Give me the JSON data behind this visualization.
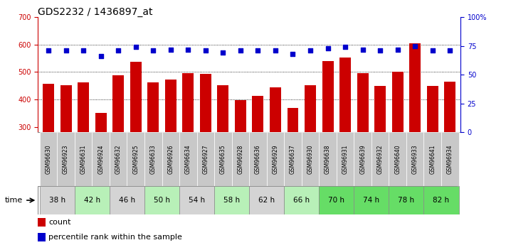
{
  "title": "GDS2232 / 1436897_at",
  "samples": [
    "GSM96630",
    "GSM96923",
    "GSM96631",
    "GSM96924",
    "GSM96632",
    "GSM96925",
    "GSM96633",
    "GSM96926",
    "GSM96634",
    "GSM96927",
    "GSM96635",
    "GSM96928",
    "GSM96636",
    "GSM96929",
    "GSM96637",
    "GSM96930",
    "GSM96638",
    "GSM96931",
    "GSM96639",
    "GSM96932",
    "GSM96640",
    "GSM96933",
    "GSM96641",
    "GSM96934"
  ],
  "time_groups": [
    {
      "label": "38 h",
      "indices": [
        0,
        1
      ],
      "color": "#d4d4d4"
    },
    {
      "label": "42 h",
      "indices": [
        2,
        3
      ],
      "color": "#b8f0b8"
    },
    {
      "label": "46 h",
      "indices": [
        4,
        5
      ],
      "color": "#d4d4d4"
    },
    {
      "label": "50 h",
      "indices": [
        6,
        7
      ],
      "color": "#b8f0b8"
    },
    {
      "label": "54 h",
      "indices": [
        8,
        9
      ],
      "color": "#d4d4d4"
    },
    {
      "label": "58 h",
      "indices": [
        10,
        11
      ],
      "color": "#b8f0b8"
    },
    {
      "label": "62 h",
      "indices": [
        12,
        13
      ],
      "color": "#d4d4d4"
    },
    {
      "label": "66 h",
      "indices": [
        14,
        15
      ],
      "color": "#b8f0b8"
    },
    {
      "label": "70 h",
      "indices": [
        16,
        17
      ],
      "color": "#66dd66"
    },
    {
      "label": "74 h",
      "indices": [
        18,
        19
      ],
      "color": "#66dd66"
    },
    {
      "label": "78 h",
      "indices": [
        20,
        21
      ],
      "color": "#66dd66"
    },
    {
      "label": "82 h",
      "indices": [
        22,
        23
      ],
      "color": "#66dd66"
    }
  ],
  "bar_values": [
    456,
    451,
    463,
    352,
    487,
    537,
    462,
    473,
    497,
    492,
    453,
    398,
    414,
    445,
    370,
    452,
    540,
    554,
    497,
    450,
    500,
    605,
    450,
    465
  ],
  "percentile_values": [
    71,
    71,
    71,
    66,
    71,
    74,
    71,
    72,
    72,
    71,
    69,
    71,
    71,
    71,
    68,
    71,
    73,
    74,
    72,
    71,
    72,
    75,
    71,
    71
  ],
  "bar_color": "#cc0000",
  "percentile_color": "#0000cc",
  "ylim_left": [
    280,
    700
  ],
  "ylim_right": [
    0,
    100
  ],
  "yticks_left": [
    300,
    400,
    500,
    600,
    700
  ],
  "yticks_right": [
    0,
    25,
    50,
    75,
    100
  ],
  "grid_yticks": [
    400,
    500,
    600
  ],
  "legend_count_label": "count",
  "legend_pct_label": "percentile rank within the sample",
  "time_label": "time",
  "sample_bg_color": "#c8c8c8",
  "tick_fontsize": 7,
  "bar_width": 0.65,
  "title_fontsize": 10
}
